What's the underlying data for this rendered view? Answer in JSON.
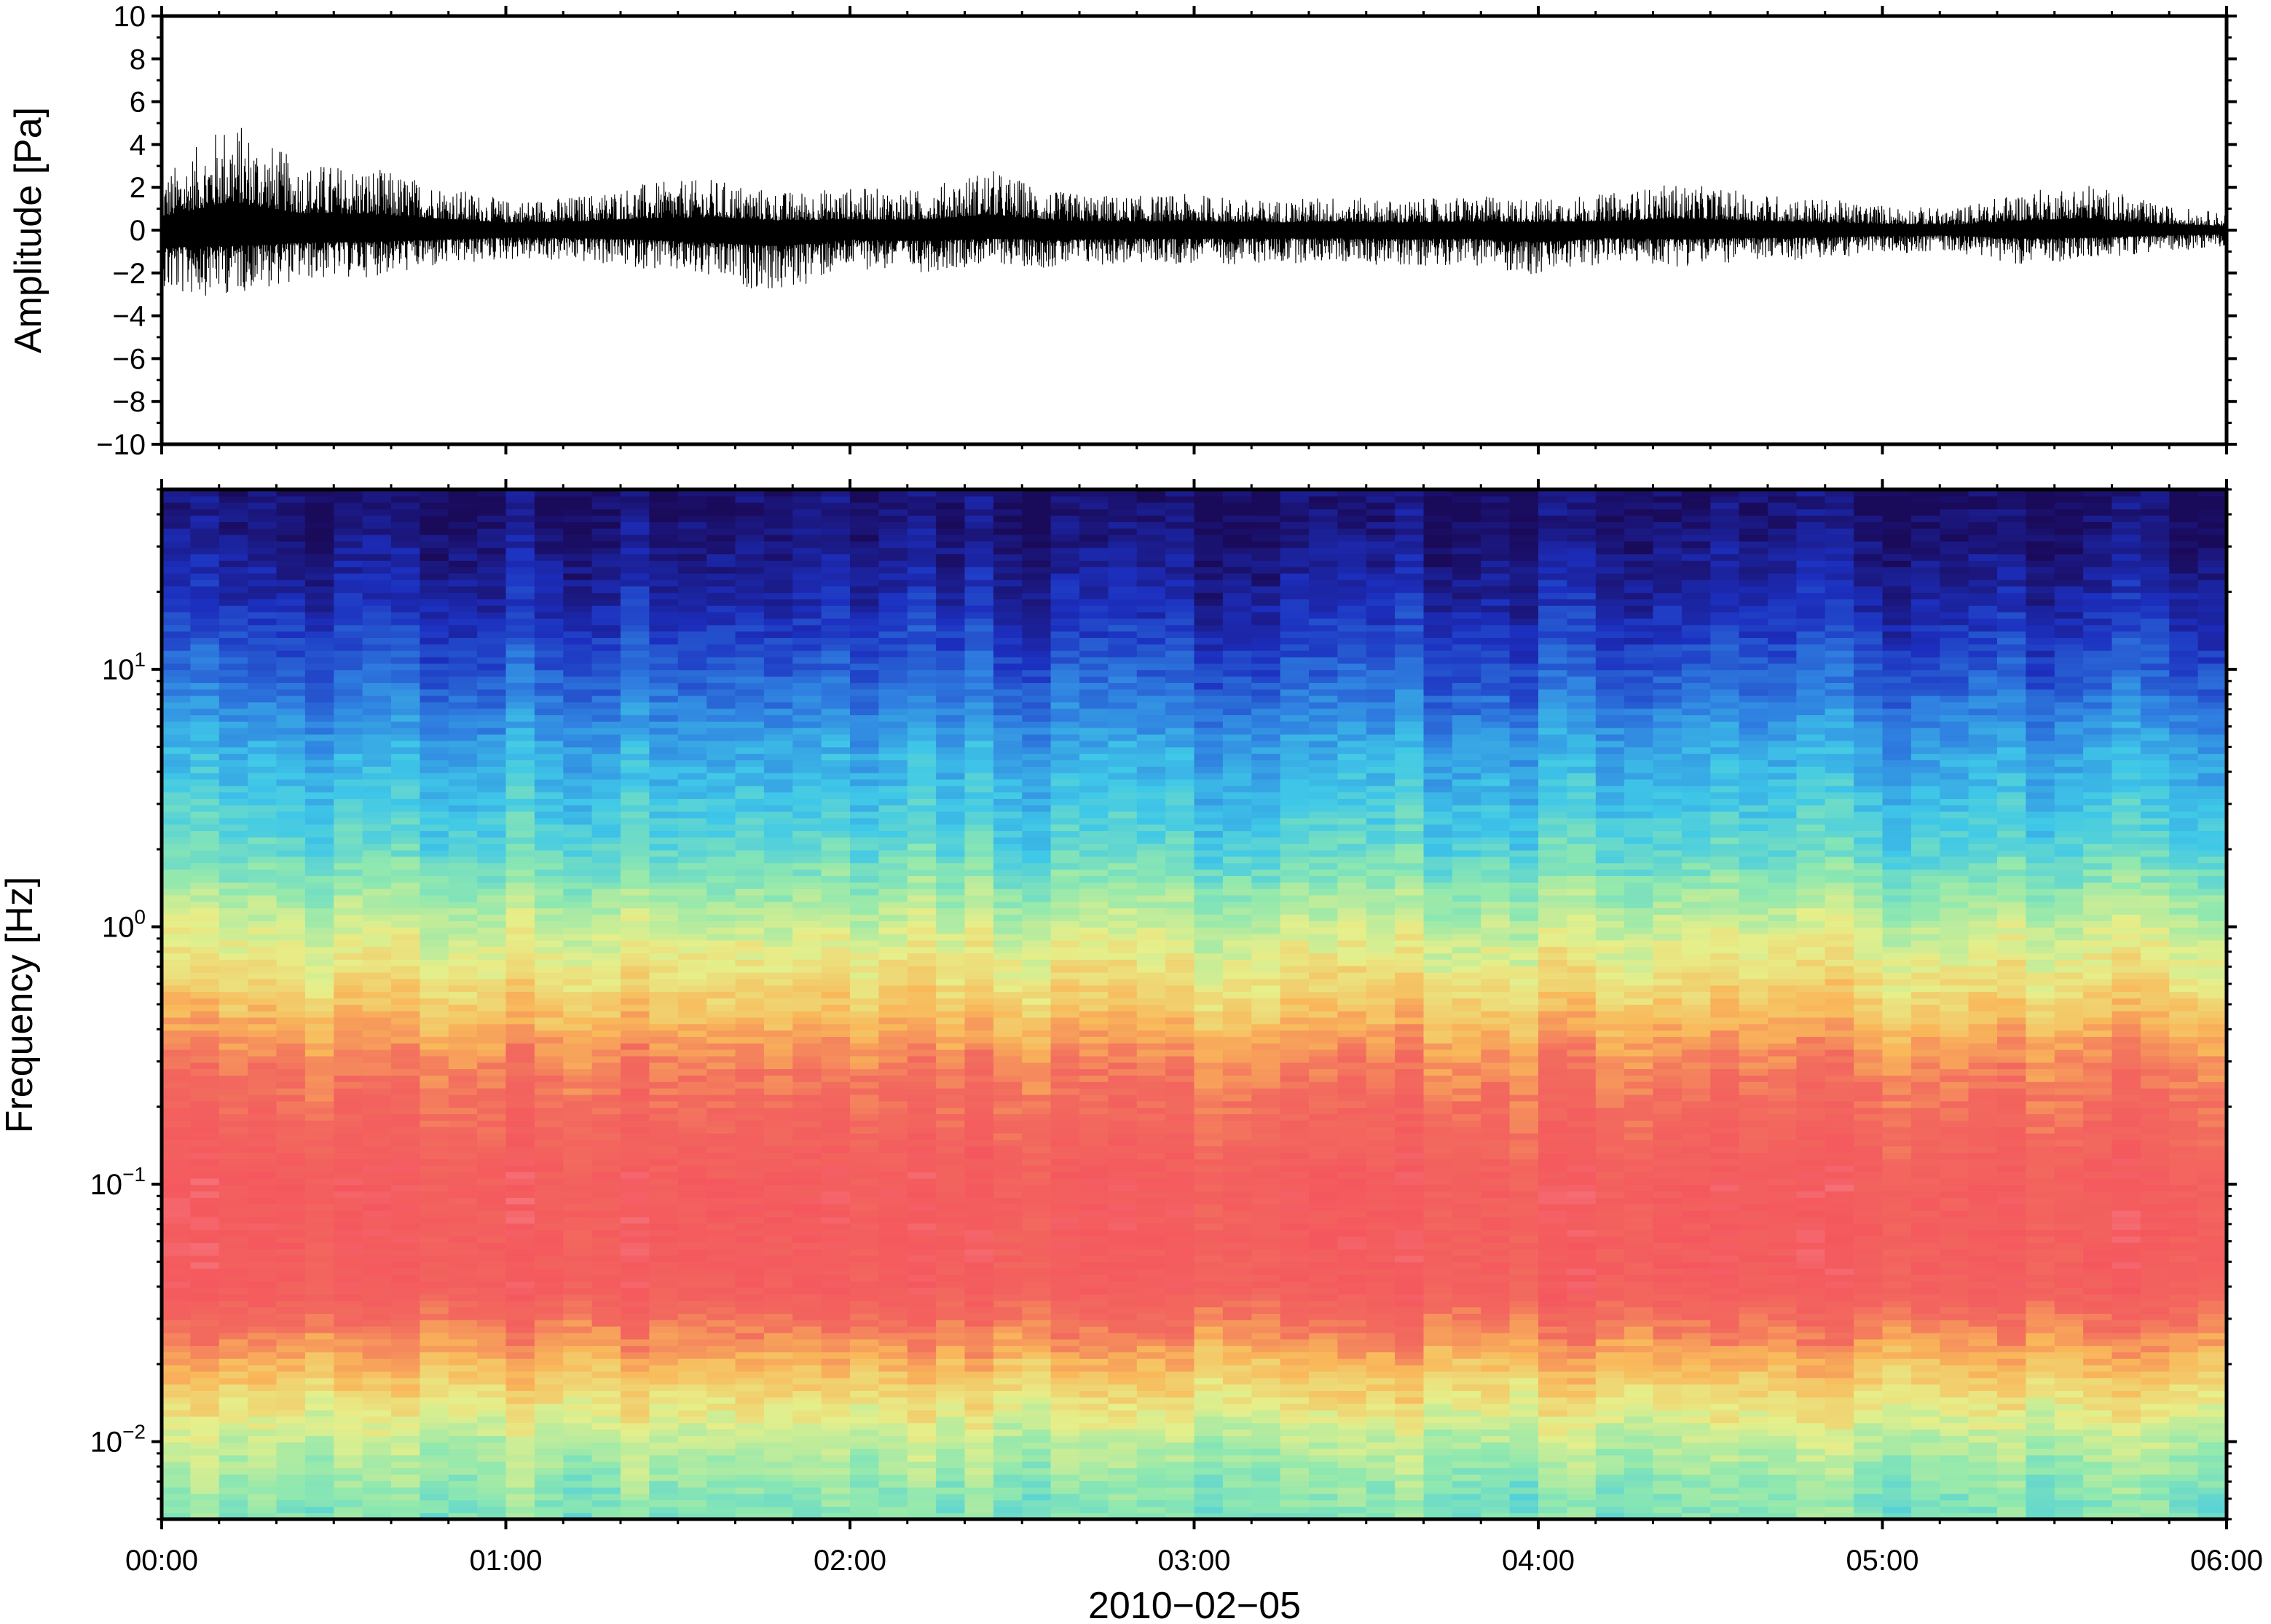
{
  "chart_data": [
    {
      "type": "line",
      "title": "",
      "ylabel": "Amplitude [Pa]",
      "ylim": [
        -10,
        10
      ],
      "yticks": [
        10,
        8,
        6,
        4,
        2,
        0,
        -2,
        -4,
        -6,
        -8,
        -10
      ],
      "ytick_labels": [
        "10",
        "8",
        "6",
        "4",
        "2",
        "0",
        "−2",
        "−4",
        "−6",
        "−8",
        "−10"
      ],
      "grid": false,
      "series": [
        {
          "color": "#000000",
          "x_hours": [
            0.0,
            0.2,
            0.4,
            0.6,
            0.8,
            1.0,
            1.2,
            1.4,
            1.6,
            1.8,
            2.0,
            2.2,
            2.4,
            2.6,
            2.8,
            3.0,
            3.2,
            3.4,
            3.6,
            3.8,
            4.0,
            4.2,
            4.4,
            4.6,
            4.8,
            5.0,
            5.2,
            5.4,
            5.6,
            5.8,
            6.0
          ],
          "envelope_max": [
            2.5,
            5.3,
            3.2,
            3.0,
            2.2,
            1.4,
            1.6,
            2.2,
            2.4,
            1.8,
            2.0,
            1.9,
            2.9,
            1.8,
            1.6,
            1.7,
            1.4,
            1.6,
            1.4,
            1.6,
            1.5,
            1.7,
            2.2,
            1.8,
            1.5,
            1.2,
            1.0,
            1.8,
            2.2,
            1.2,
            0.8
          ],
          "envelope_min": [
            -3.2,
            -3.0,
            -2.4,
            -2.2,
            -1.8,
            -1.4,
            -1.5,
            -1.8,
            -2.4,
            -3.0,
            -1.8,
            -2.0,
            -1.6,
            -1.8,
            -1.6,
            -1.6,
            -1.6,
            -1.5,
            -1.7,
            -1.6,
            -2.2,
            -1.5,
            -1.7,
            -1.5,
            -1.4,
            -1.1,
            -1.0,
            -1.6,
            -1.4,
            -1.0,
            -0.8
          ]
        }
      ]
    },
    {
      "type": "heatmap",
      "title": "",
      "xlabel": "2010−02−05",
      "ylabel": "Frequency [Hz]",
      "yscale": "log",
      "ylim": [
        0.005,
        50
      ],
      "y_tick_labels": [
        {
          "value": 10,
          "base": "10",
          "exp": "1"
        },
        {
          "value": 1,
          "base": "10",
          "exp": "0"
        },
        {
          "value": 0.1,
          "base": "10",
          "exp": "−1"
        },
        {
          "value": 0.01,
          "base": "10",
          "exp": "−2"
        }
      ],
      "x_tick_labels": [
        "00:00",
        "01:00",
        "02:00",
        "03:00",
        "04:00",
        "05:00",
        "06:00"
      ],
      "xlim_hours": [
        0,
        6
      ],
      "colormap": [
        "#1a0a5a",
        "#1c2fbf",
        "#2f7fe0",
        "#3fc8e8",
        "#8ee8b0",
        "#e6ef8a",
        "#f9b85a",
        "#f26a5e",
        "#f4585e",
        "#f79aa0"
      ],
      "frequency_band_levels": [
        {
          "freq_hz": 40,
          "level": 0.02
        },
        {
          "freq_hz": 20,
          "level": 0.08
        },
        {
          "freq_hz": 10,
          "level": 0.17
        },
        {
          "freq_hz": 5,
          "level": 0.28
        },
        {
          "freq_hz": 2,
          "level": 0.38
        },
        {
          "freq_hz": 1,
          "level": 0.52
        },
        {
          "freq_hz": 0.5,
          "level": 0.63
        },
        {
          "freq_hz": 0.3,
          "level": 0.74
        },
        {
          "freq_hz": 0.1,
          "level": 0.86
        },
        {
          "freq_hz": 0.04,
          "level": 0.85
        },
        {
          "freq_hz": 0.02,
          "level": 0.66
        },
        {
          "freq_hz": 0.01,
          "level": 0.5
        },
        {
          "freq_hz": 0.006,
          "level": 0.43
        }
      ]
    }
  ]
}
